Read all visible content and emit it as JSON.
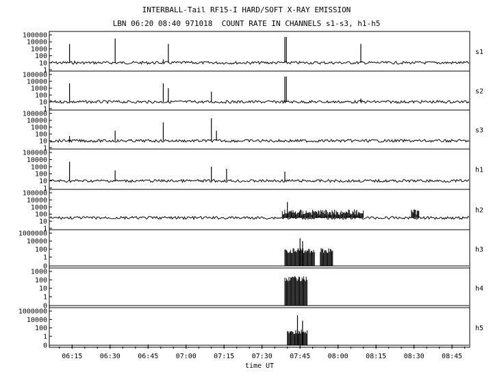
{
  "chart_data": {
    "type": "line",
    "title": "INTERBALL-Tail RF15-I HARD/SOFT X-RAY EMISSION",
    "subtitle": "LBN 06:20 08:40 971018  COUNT RATE IN CHANNELS s1-s3, h1-h5",
    "xlabel": "time UT",
    "x_ticks": [
      "06:15",
      "06:30",
      "06:45",
      "07:00",
      "07:15",
      "07:30",
      "07:45",
      "08:00",
      "08:15",
      "08:30",
      "08:45"
    ],
    "xlim": [
      "06:06",
      "08:52"
    ],
    "yscale": "log",
    "grid": false,
    "panels": [
      {
        "name": "s1",
        "yticks": [
          "100000",
          "10000",
          "1000",
          "100",
          "10",
          "1"
        ],
        "baseline": 10,
        "spikes": [
          [
            "06:14",
            5000
          ],
          [
            "06:16",
            20
          ],
          [
            "06:32",
            30000
          ],
          [
            "06:51",
            30
          ],
          [
            "06:53",
            5000
          ],
          [
            "07:39",
            50000
          ],
          [
            "07:39.6",
            50000
          ],
          [
            "08:09",
            5000
          ]
        ],
        "bursts": []
      },
      {
        "name": "s2",
        "yticks": [
          "100000",
          "10000",
          "1000",
          "100",
          "10",
          "1"
        ],
        "baseline": 10,
        "spikes": [
          [
            "06:14",
            5000
          ],
          [
            "06:51",
            5000
          ],
          [
            "06:53",
            1000
          ],
          [
            "07:10",
            300
          ],
          [
            "07:39",
            50000
          ],
          [
            "07:39.6",
            50000
          ],
          [
            "08:09",
            30
          ]
        ],
        "bursts": []
      },
      {
        "name": "s3",
        "yticks": [
          "100000",
          "10000",
          "1000",
          "100",
          "10",
          "1"
        ],
        "baseline": 10,
        "spikes": [
          [
            "06:14",
            50
          ],
          [
            "06:32",
            300
          ],
          [
            "06:51",
            5000
          ],
          [
            "07:10",
            20000
          ],
          [
            "07:12",
            300
          ]
        ],
        "bursts": []
      },
      {
        "name": "h1",
        "yticks": [
          "100000",
          "10000",
          "1000",
          "100",
          "10",
          "1"
        ],
        "baseline": 10,
        "spikes": [
          [
            "06:14",
            5000
          ],
          [
            "06:32",
            300
          ],
          [
            "07:10",
            1000
          ],
          [
            "07:16",
            500
          ],
          [
            "07:39",
            200
          ]
        ],
        "bursts": []
      },
      {
        "name": "h2",
        "yticks": [
          "100000",
          "10000",
          "1000",
          "100",
          "10",
          "1"
        ],
        "baseline": 30,
        "spikes": [
          [
            "07:40",
            5000
          ]
        ],
        "bursts": [
          [
            "07:38",
            "07:48",
            300
          ],
          [
            "07:48",
            "07:57",
            300
          ],
          [
            "07:57",
            "08:10",
            300
          ],
          [
            "08:29",
            "08:32",
            300
          ]
        ]
      },
      {
        "name": "h3",
        "yticks": [
          "1000000",
          "10000",
          "100",
          "1",
          "0"
        ],
        "baseline": 0,
        "spikes": [
          [
            "07:45",
            50000
          ],
          [
            "07:46",
            10000
          ]
        ],
        "bursts": [
          [
            "07:39",
            "07:51",
            100
          ],
          [
            "07:53",
            "07:58",
            100
          ]
        ]
      },
      {
        "name": "h4",
        "yticks": [
          "1000",
          "100",
          "10",
          "1",
          "0"
        ],
        "baseline": 0,
        "spikes": [],
        "bursts": [
          [
            "07:39",
            "07:48",
            200
          ]
        ]
      },
      {
        "name": "h5",
        "yticks": [
          "1000000",
          "10000",
          "100",
          "1",
          "0"
        ],
        "baseline": 0,
        "spikes": [
          [
            "07:44",
            100000
          ],
          [
            "07:46",
            5000
          ]
        ],
        "bursts": [
          [
            "07:40",
            "07:48",
            30
          ]
        ]
      }
    ]
  }
}
